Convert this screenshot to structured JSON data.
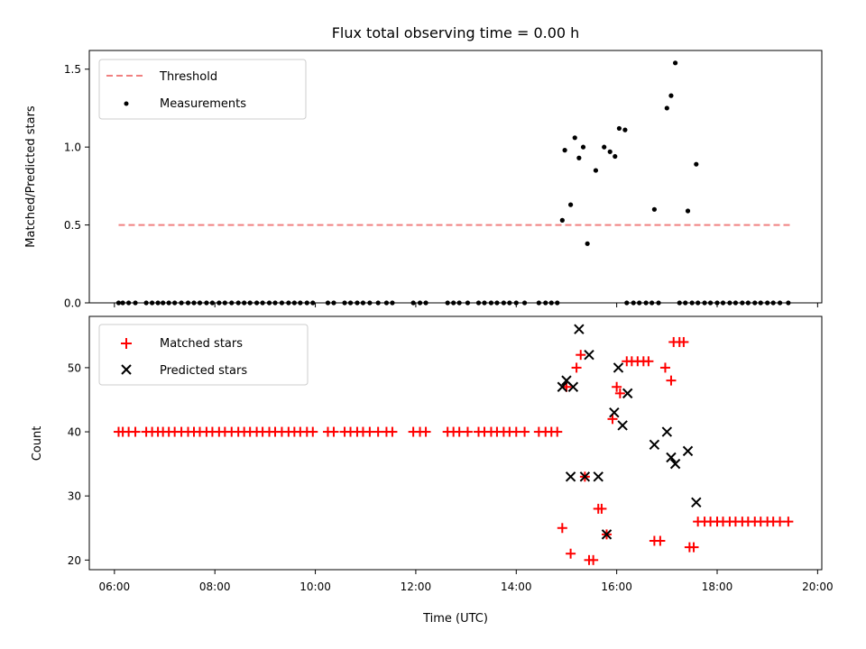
{
  "chart_data": [
    {
      "type": "scatter",
      "title": "Flux total observing time = 0.00 h",
      "xlabel": "",
      "ylabel": "Matched/Predicted stars",
      "xlim": [
        "05:30",
        "20:05"
      ],
      "ylim": [
        0,
        1.62
      ],
      "yticks": [
        0,
        0.5,
        1.0,
        1.5
      ],
      "yticklabels": [
        "0.0",
        "0.5",
        "1.0",
        "1.5"
      ],
      "legend_position": "top-left",
      "threshold": {
        "name": "Threshold",
        "value": 0.5,
        "x_start": "06:05",
        "x_end": "19:28",
        "color": "#f08080",
        "style": "dashed"
      },
      "series": [
        {
          "name": "Measurements",
          "marker": "dot",
          "color": "#000000",
          "points": [
            [
              "06:05",
              0
            ],
            [
              "06:10",
              0
            ],
            [
              "06:17",
              0
            ],
            [
              "06:25",
              0
            ],
            [
              "06:38",
              0
            ],
            [
              "06:45",
              0
            ],
            [
              "06:52",
              0
            ],
            [
              "06:58",
              0
            ],
            [
              "07:05",
              0
            ],
            [
              "07:12",
              0
            ],
            [
              "07:20",
              0
            ],
            [
              "07:28",
              0
            ],
            [
              "07:35",
              0
            ],
            [
              "07:42",
              0
            ],
            [
              "07:50",
              0
            ],
            [
              "07:57",
              0
            ],
            [
              "08:05",
              0
            ],
            [
              "08:12",
              0
            ],
            [
              "08:20",
              0
            ],
            [
              "08:28",
              0
            ],
            [
              "08:35",
              0
            ],
            [
              "08:42",
              0
            ],
            [
              "08:50",
              0
            ],
            [
              "08:57",
              0
            ],
            [
              "09:05",
              0
            ],
            [
              "09:12",
              0
            ],
            [
              "09:20",
              0
            ],
            [
              "09:28",
              0
            ],
            [
              "09:35",
              0
            ],
            [
              "09:42",
              0
            ],
            [
              "09:50",
              0
            ],
            [
              "09:57",
              0
            ],
            [
              "10:15",
              0
            ],
            [
              "10:22",
              0
            ],
            [
              "10:35",
              0
            ],
            [
              "10:42",
              0
            ],
            [
              "10:50",
              0
            ],
            [
              "10:57",
              0
            ],
            [
              "11:05",
              0
            ],
            [
              "11:15",
              0
            ],
            [
              "11:25",
              0
            ],
            [
              "11:32",
              0
            ],
            [
              "11:57",
              0
            ],
            [
              "12:05",
              0
            ],
            [
              "12:12",
              0
            ],
            [
              "12:38",
              0
            ],
            [
              "12:45",
              0
            ],
            [
              "12:52",
              0
            ],
            [
              "13:02",
              0
            ],
            [
              "13:15",
              0
            ],
            [
              "13:22",
              0
            ],
            [
              "13:30",
              0
            ],
            [
              "13:37",
              0
            ],
            [
              "13:45",
              0
            ],
            [
              "13:52",
              0
            ],
            [
              "14:00",
              0
            ],
            [
              "14:10",
              0
            ],
            [
              "14:27",
              0
            ],
            [
              "14:35",
              0
            ],
            [
              "14:42",
              0
            ],
            [
              "14:49",
              0
            ],
            [
              "14:55",
              0.53
            ],
            [
              "14:58",
              0.98
            ],
            [
              "15:05",
              0.63
            ],
            [
              "15:10",
              1.06
            ],
            [
              "15:15",
              0.93
            ],
            [
              "15:20",
              1.0
            ],
            [
              "15:25",
              0.38
            ],
            [
              "15:35",
              0.85
            ],
            [
              "15:45",
              1.0
            ],
            [
              "15:52",
              0.97
            ],
            [
              "15:58",
              0.94
            ],
            [
              "16:03",
              1.12
            ],
            [
              "16:10",
              1.11
            ],
            [
              "16:12",
              0
            ],
            [
              "16:20",
              0
            ],
            [
              "16:27",
              0
            ],
            [
              "16:35",
              0
            ],
            [
              "16:42",
              0
            ],
            [
              "16:50",
              0
            ],
            [
              "16:45",
              0.6
            ],
            [
              "17:00",
              1.25
            ],
            [
              "17:05",
              1.33
            ],
            [
              "17:10",
              1.54
            ],
            [
              "17:25",
              0.59
            ],
            [
              "17:35",
              0.89
            ],
            [
              "17:15",
              0
            ],
            [
              "17:22",
              0
            ],
            [
              "17:30",
              0
            ],
            [
              "17:37",
              0
            ],
            [
              "17:45",
              0
            ],
            [
              "17:52",
              0
            ],
            [
              "18:00",
              0
            ],
            [
              "18:07",
              0
            ],
            [
              "18:15",
              0
            ],
            [
              "18:22",
              0
            ],
            [
              "18:30",
              0
            ],
            [
              "18:37",
              0
            ],
            [
              "18:45",
              0
            ],
            [
              "18:52",
              0
            ],
            [
              "19:00",
              0
            ],
            [
              "19:07",
              0
            ],
            [
              "19:15",
              0
            ],
            [
              "19:25",
              0
            ]
          ]
        }
      ]
    },
    {
      "type": "scatter",
      "title": "",
      "xlabel": "Time (UTC)",
      "ylabel": "Count",
      "xlim": [
        "05:30",
        "20:05"
      ],
      "ylim": [
        18.5,
        58
      ],
      "xticks": [
        "06:00",
        "08:00",
        "10:00",
        "12:00",
        "14:00",
        "16:00",
        "18:00",
        "20:00"
      ],
      "yticks": [
        20,
        30,
        40,
        50
      ],
      "legend_position": "top-left",
      "series": [
        {
          "name": "Matched stars",
          "marker": "plus",
          "color": "#ff0000",
          "points": [
            [
              "06:05",
              40
            ],
            [
              "06:10",
              40
            ],
            [
              "06:17",
              40
            ],
            [
              "06:25",
              40
            ],
            [
              "06:38",
              40
            ],
            [
              "06:45",
              40
            ],
            [
              "06:52",
              40
            ],
            [
              "06:58",
              40
            ],
            [
              "07:05",
              40
            ],
            [
              "07:12",
              40
            ],
            [
              "07:20",
              40
            ],
            [
              "07:28",
              40
            ],
            [
              "07:35",
              40
            ],
            [
              "07:42",
              40
            ],
            [
              "07:50",
              40
            ],
            [
              "07:57",
              40
            ],
            [
              "08:05",
              40
            ],
            [
              "08:12",
              40
            ],
            [
              "08:20",
              40
            ],
            [
              "08:28",
              40
            ],
            [
              "08:35",
              40
            ],
            [
              "08:42",
              40
            ],
            [
              "08:50",
              40
            ],
            [
              "08:57",
              40
            ],
            [
              "09:05",
              40
            ],
            [
              "09:12",
              40
            ],
            [
              "09:20",
              40
            ],
            [
              "09:28",
              40
            ],
            [
              "09:35",
              40
            ],
            [
              "09:42",
              40
            ],
            [
              "09:50",
              40
            ],
            [
              "09:57",
              40
            ],
            [
              "10:15",
              40
            ],
            [
              "10:22",
              40
            ],
            [
              "10:35",
              40
            ],
            [
              "10:42",
              40
            ],
            [
              "10:50",
              40
            ],
            [
              "10:57",
              40
            ],
            [
              "11:05",
              40
            ],
            [
              "11:15",
              40
            ],
            [
              "11:25",
              40
            ],
            [
              "11:32",
              40
            ],
            [
              "11:57",
              40
            ],
            [
              "12:05",
              40
            ],
            [
              "12:12",
              40
            ],
            [
              "12:38",
              40
            ],
            [
              "12:45",
              40
            ],
            [
              "12:52",
              40
            ],
            [
              "13:02",
              40
            ],
            [
              "13:15",
              40
            ],
            [
              "13:22",
              40
            ],
            [
              "13:30",
              40
            ],
            [
              "13:37",
              40
            ],
            [
              "13:45",
              40
            ],
            [
              "13:52",
              40
            ],
            [
              "14:00",
              40
            ],
            [
              "14:10",
              40
            ],
            [
              "14:27",
              40
            ],
            [
              "14:35",
              40
            ],
            [
              "14:42",
              40
            ],
            [
              "14:49",
              40
            ],
            [
              "14:55",
              25
            ],
            [
              "15:00",
              47
            ],
            [
              "15:05",
              21
            ],
            [
              "15:12",
              50
            ],
            [
              "15:17",
              52
            ],
            [
              "15:22",
              33
            ],
            [
              "15:27",
              20
            ],
            [
              "15:32",
              20
            ],
            [
              "15:38",
              28
            ],
            [
              "15:42",
              28
            ],
            [
              "15:48",
              24
            ],
            [
              "15:55",
              42
            ],
            [
              "16:00",
              47
            ],
            [
              "16:04",
              46
            ],
            [
              "16:12",
              51
            ],
            [
              "16:18",
              51
            ],
            [
              "16:25",
              51
            ],
            [
              "16:32",
              51
            ],
            [
              "16:38",
              51
            ],
            [
              "16:45",
              23
            ],
            [
              "16:52",
              23
            ],
            [
              "16:58",
              50
            ],
            [
              "17:05",
              48
            ],
            [
              "17:08",
              54
            ],
            [
              "17:15",
              54
            ],
            [
              "17:20",
              54
            ],
            [
              "17:27",
              22
            ],
            [
              "17:32",
              22
            ],
            [
              "17:37",
              26
            ],
            [
              "17:45",
              26
            ],
            [
              "17:52",
              26
            ],
            [
              "18:00",
              26
            ],
            [
              "18:07",
              26
            ],
            [
              "18:15",
              26
            ],
            [
              "18:22",
              26
            ],
            [
              "18:30",
              26
            ],
            [
              "18:37",
              26
            ],
            [
              "18:45",
              26
            ],
            [
              "18:52",
              26
            ],
            [
              "19:00",
              26
            ],
            [
              "19:07",
              26
            ],
            [
              "19:15",
              26
            ],
            [
              "19:25",
              26
            ]
          ]
        },
        {
          "name": "Predicted stars",
          "marker": "x",
          "color": "#000000",
          "points": [
            [
              "14:55",
              47
            ],
            [
              "15:00",
              48
            ],
            [
              "15:05",
              33
            ],
            [
              "15:08",
              47
            ],
            [
              "15:15",
              56
            ],
            [
              "15:22",
              33
            ],
            [
              "15:27",
              52
            ],
            [
              "15:38",
              33
            ],
            [
              "15:48",
              24
            ],
            [
              "15:57",
              43
            ],
            [
              "16:02",
              50
            ],
            [
              "16:07",
              41
            ],
            [
              "16:13",
              46
            ],
            [
              "16:45",
              38
            ],
            [
              "17:00",
              40
            ],
            [
              "17:05",
              36
            ],
            [
              "17:10",
              35
            ],
            [
              "17:25",
              37
            ],
            [
              "17:35",
              29
            ]
          ]
        }
      ]
    }
  ]
}
